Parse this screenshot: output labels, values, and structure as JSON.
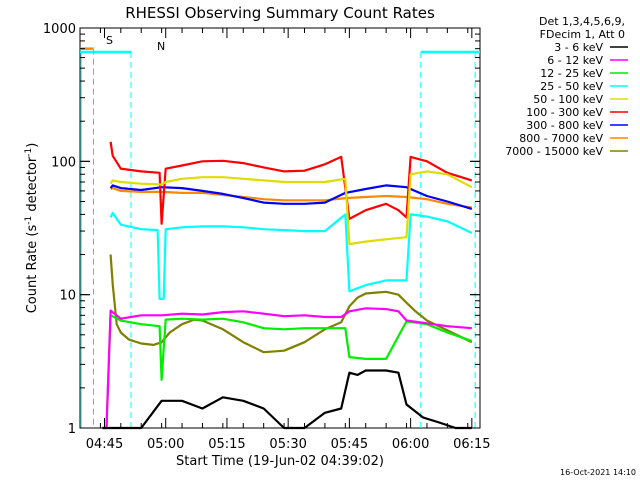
{
  "chart_data": {
    "type": "line",
    "title": "RHESSI Observing Summary Count Rates",
    "xlabel": "Start Time (19-Jun-02 04:39:02)",
    "ylabel_main": "Count Rate (s",
    "ylabel_sup1": "-1",
    "ylabel_mid": " detector",
    "ylabel_sup2": "-1",
    "ylabel_end": ")",
    "yscale": "log",
    "ylim": [
      1,
      1000
    ],
    "xlim": [
      0,
      98
    ],
    "x_unit": "minutes since 04:39:02",
    "x_ticks": [
      {
        "label": "04:45",
        "x": 6
      },
      {
        "label": "05:00",
        "x": 21
      },
      {
        "label": "05:15",
        "x": 36
      },
      {
        "label": "05:30",
        "x": 51
      },
      {
        "label": "05:45",
        "x": 66
      },
      {
        "label": "06:00",
        "x": 81
      },
      {
        "label": "06:15",
        "x": 96
      }
    ],
    "y_ticks": [
      {
        "label": "1",
        "y": 1
      },
      {
        "label": "10",
        "y": 10
      },
      {
        "label": "100",
        "y": 100
      },
      {
        "label": "1000",
        "y": 1000
      }
    ],
    "legend": {
      "header1": "Det 1,3,4,5,6,9,",
      "header2": "FDecim 1, Att 0",
      "placement": "right"
    },
    "series": [
      {
        "name": "3 - 6 keV",
        "color": "#000000",
        "x": [
          5.5,
          8,
          10,
          15,
          20,
          25,
          30,
          35,
          40,
          45,
          50,
          55,
          60,
          64,
          66,
          68,
          70,
          75,
          78,
          80,
          84,
          88,
          92,
          96
        ],
        "y": [
          1.0,
          1.0,
          1.0,
          1.0,
          1.6,
          1.6,
          1.4,
          1.7,
          1.6,
          1.4,
          1.0,
          1.0,
          1.3,
          1.4,
          2.6,
          2.5,
          2.7,
          2.7,
          2.6,
          1.5,
          1.2,
          1.1,
          1.0,
          1.0
        ]
      },
      {
        "name": "6 - 12 keV",
        "color": "#ff00ff",
        "x": [
          5.5,
          6.5,
          7.5,
          10,
          15,
          20,
          25,
          30,
          35,
          40,
          45,
          50,
          55,
          60,
          64,
          66,
          68,
          70,
          75,
          78,
          80,
          85,
          90,
          96
        ],
        "y": [
          1.0,
          1.0,
          7.6,
          6.6,
          7.0,
          7.0,
          7.2,
          7.1,
          7.4,
          7.5,
          7.2,
          6.9,
          7.0,
          6.8,
          6.8,
          7.5,
          7.7,
          7.9,
          7.8,
          7.5,
          6.4,
          6.1,
          5.8,
          5.6
        ]
      },
      {
        "name": "12 - 25 keV",
        "color": "#00ee00",
        "x": [
          5.5,
          6.5,
          7.5,
          10,
          15,
          19.5,
          20,
          21,
          25,
          30,
          35,
          40,
          45,
          50,
          55,
          60,
          65,
          66,
          70,
          75,
          80,
          85,
          90,
          96
        ],
        "y": [
          1.0,
          1.0,
          7.0,
          6.4,
          6.0,
          5.8,
          2.3,
          6.5,
          6.6,
          6.5,
          6.6,
          6.2,
          5.6,
          5.5,
          5.6,
          5.6,
          5.6,
          3.4,
          3.3,
          3.3,
          6.3,
          6.0,
          5.2,
          4.5
        ]
      },
      {
        "name": "25 - 50 keV",
        "color": "#00ffff",
        "x": [
          7.5,
          8,
          10,
          15,
          19,
          19.5,
          20.5,
          21,
          25,
          30,
          35,
          40,
          45,
          50,
          55,
          60,
          65,
          66,
          70,
          75,
          80,
          81,
          85,
          90,
          96
        ],
        "y": [
          38.0,
          41.0,
          33.5,
          31.0,
          30.5,
          9.3,
          9.3,
          31.0,
          32.0,
          32.5,
          32.5,
          32.0,
          31.0,
          30.5,
          30.0,
          30.0,
          40.0,
          10.6,
          11.8,
          12.8,
          12.8,
          40.0,
          38.5,
          35.5,
          29.0
        ]
      },
      {
        "name": "50 - 100 keV",
        "color": "#dddd00",
        "x": [
          7.5,
          8,
          10,
          15,
          20,
          21,
          25,
          30,
          35,
          40,
          45,
          50,
          55,
          60,
          65,
          66,
          70,
          75,
          80,
          81,
          85,
          90,
          96
        ],
        "y": [
          68.0,
          72.0,
          70.0,
          68.0,
          67.0,
          70.0,
          74.0,
          76.0,
          76.0,
          74.0,
          72.0,
          70.0,
          70.0,
          70.0,
          74.0,
          24.0,
          25.0,
          26.0,
          27.0,
          80.0,
          84.0,
          80.0,
          64.0
        ]
      },
      {
        "name": "100 - 300 keV",
        "color": "#ff0000",
        "x": [
          7.5,
          8,
          10,
          15,
          19.5,
          20,
          21,
          25,
          30,
          35,
          40,
          45,
          50,
          55,
          60,
          64,
          66,
          70,
          75,
          78,
          80,
          81,
          85,
          90,
          96
        ],
        "y": [
          140.0,
          110.0,
          88.0,
          84.0,
          82.0,
          34.0,
          88.0,
          93.0,
          100.0,
          101.0,
          97.0,
          90.0,
          84.0,
          85.0,
          95.0,
          108.0,
          37.0,
          43.0,
          48.0,
          43.0,
          38.0,
          108.0,
          100.0,
          82.0,
          72.0
        ]
      },
      {
        "name": "300 - 800 keV",
        "color": "#0000ff",
        "x": [
          7.5,
          8,
          10,
          15,
          20,
          25,
          30,
          35,
          40,
          45,
          50,
          55,
          60,
          65,
          70,
          75,
          80,
          85,
          90,
          96
        ],
        "y": [
          63.0,
          66.0,
          63.0,
          61.0,
          64.0,
          63.0,
          60.0,
          57.0,
          53.0,
          49.0,
          48.0,
          48.0,
          49.0,
          58.0,
          62.0,
          66.0,
          64.0,
          55.0,
          50.0,
          44.0
        ]
      },
      {
        "name": "800 - 7000 keV",
        "color": "#ff8800",
        "x": [
          7.5,
          8,
          10,
          15,
          20,
          25,
          30,
          35,
          40,
          45,
          50,
          55,
          60,
          65,
          70,
          75,
          80,
          85,
          90,
          96
        ],
        "y": [
          62.0,
          63.0,
          60.0,
          59.0,
          59.0,
          58.0,
          58.0,
          56.0,
          54.0,
          52.0,
          51.0,
          51.0,
          51.0,
          53.0,
          54.0,
          55.0,
          54.0,
          52.0,
          48.0,
          45.0
        ]
      },
      {
        "name": "7000 - 15000 keV",
        "color": "#808000",
        "x": [
          7.5,
          8,
          9,
          10,
          12,
          15,
          18,
          20,
          22,
          25,
          28,
          30,
          35,
          40,
          45,
          50,
          55,
          60,
          64,
          66,
          68,
          70,
          75,
          78,
          80,
          82,
          85,
          90,
          96
        ],
        "y": [
          20.0,
          12.0,
          6.0,
          5.2,
          4.6,
          4.3,
          4.2,
          4.4,
          5.2,
          6.0,
          6.5,
          6.4,
          5.5,
          4.4,
          3.7,
          3.8,
          4.4,
          5.5,
          6.2,
          8.2,
          9.5,
          10.2,
          10.5,
          10.0,
          8.7,
          7.6,
          6.4,
          5.4,
          4.4
        ]
      }
    ],
    "annotations": {
      "saa_label": "S",
      "night_label": "N",
      "timestamp": "16-Oct-2021 14:10"
    },
    "saa_segment": {
      "x": [
        0,
        3.3
      ],
      "y": 700,
      "color": "#ff8800"
    },
    "night_segments": [
      {
        "x": [
          0,
          12.5
        ],
        "y": 660
      },
      {
        "x": [
          83.5,
          98
        ],
        "y": 660
      }
    ],
    "cyan_lines": [
      12.5,
      83.5,
      96.8
    ],
    "orange_line": 3.3
  }
}
